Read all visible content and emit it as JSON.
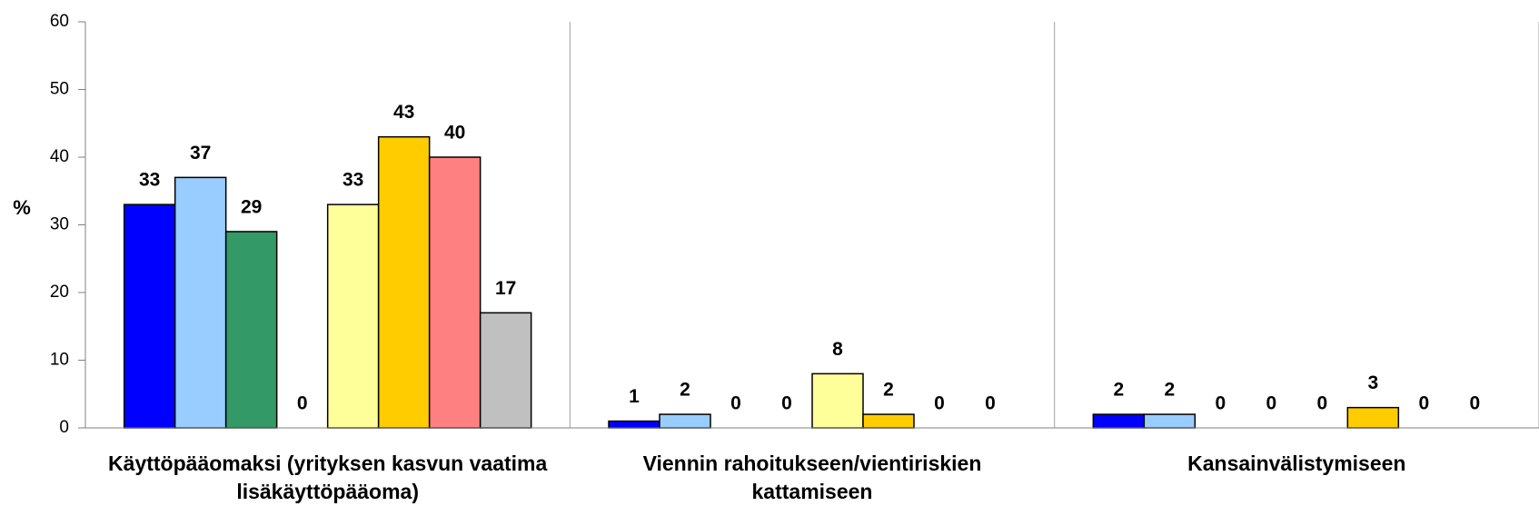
{
  "chart_data": {
    "type": "bar",
    "y_label": "%",
    "categories": [
      "Käyttöpääomaksi (yrityksen kasvun vaatima lisäkäyttöpääoma)",
      "Viennin rahoitukseen/vientiriskien kattamiseen",
      "Kansainvälistymiseen"
    ],
    "series": [
      {
        "color": "#0000ff",
        "values": [
          33,
          1,
          2
        ]
      },
      {
        "color": "#99ccff",
        "values": [
          37,
          2,
          2
        ]
      },
      {
        "color": "#339966",
        "values": [
          29,
          0,
          0
        ]
      },
      {
        "color": "#993366",
        "values": [
          0,
          0,
          0
        ]
      },
      {
        "color": "#ffff99",
        "values": [
          33,
          8,
          0
        ]
      },
      {
        "color": "#ffcc00",
        "values": [
          43,
          2,
          3
        ]
      },
      {
        "color": "#ff8080",
        "values": [
          40,
          0,
          0
        ]
      },
      {
        "color": "#c0c0c0",
        "values": [
          17,
          0,
          0
        ]
      }
    ],
    "ylim": [
      0,
      60
    ],
    "yticks": [
      0,
      10,
      20,
      30,
      40,
      50,
      60
    ],
    "grid": "categories"
  }
}
